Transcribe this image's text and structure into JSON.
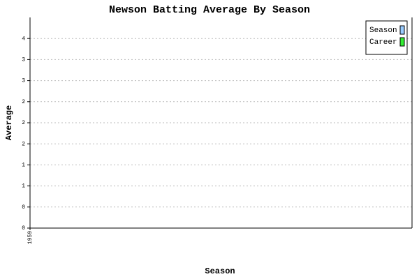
{
  "chart_data": {
    "type": "bar",
    "title": "Newson Batting Average By Season",
    "x_label": "Season",
    "y_label": "Average",
    "categories": [
      "1959"
    ],
    "series": [
      {
        "name": "Season",
        "color": "#99ccff",
        "values": [
          null
        ]
      },
      {
        "name": "Career",
        "color": "#33ee33",
        "values": [
          null
        ]
      }
    ],
    "ylim": [
      0,
      4
    ],
    "yticks": [
      0,
      {
        "value": 0.4,
        "label": "0"
      },
      {
        "value": 0.8,
        "label": "1"
      },
      {
        "value": 1.2,
        "label": "1"
      },
      {
        "value": 1.6,
        "label": "2"
      },
      {
        "value": 2.0,
        "label": "2"
      },
      {
        "value": 2.4,
        "label": "2"
      },
      {
        "value": 2.8,
        "label": "3"
      },
      {
        "value": 3.2,
        "label": "3"
      },
      {
        "value": 3.6,
        "label": "4"
      }
    ],
    "grid": true,
    "legend": "top-right"
  }
}
